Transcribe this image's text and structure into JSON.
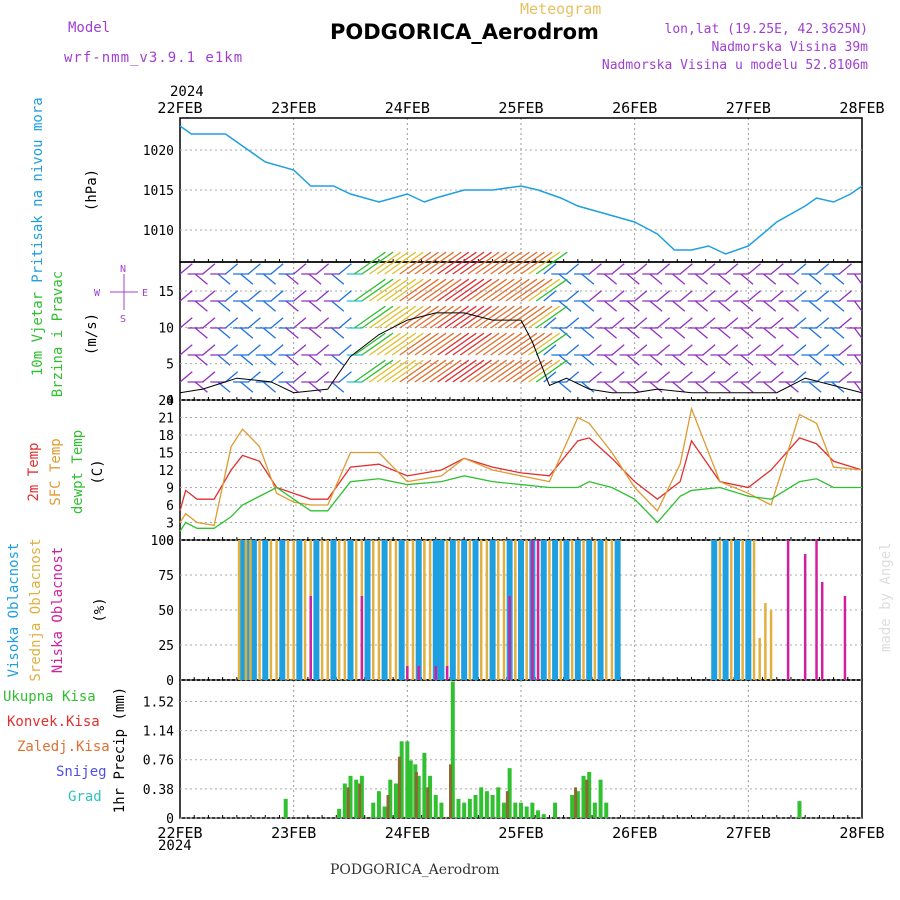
{
  "header": {
    "meteogram": "Meteogram",
    "title": "PODGORICA_Aerodrom",
    "model_label": "Model",
    "model_name": "wrf-nmm_v3.9.1 e1km",
    "lonlat": "lon,lat (19.25E, 42.3625N)",
    "altitude": "Nadmorska Visina 39m",
    "model_altitude": "Nadmorska Visina u modelu 52.8106m"
  },
  "year": "2024",
  "footer": "PODGORICA_Aerodrom",
  "credit": "made by Angel",
  "chart_data": [
    {
      "type": "line",
      "ylabel": [
        "Pritisak na nivou mora",
        "(hPa)"
      ],
      "x_ticks": [
        "22FEB",
        "23FEB",
        "24FEB",
        "25FEB",
        "26FEB",
        "27FEB",
        "28FEB"
      ],
      "yticks": [
        1010,
        1015,
        1020
      ],
      "ylim": [
        1006,
        1024
      ],
      "color": "#1e9fe0",
      "series": [
        {
          "name": "Pritisak na nivou mora",
          "x": [
            0,
            0.1,
            0.25,
            0.4,
            0.5,
            0.75,
            1.0,
            1.15,
            1.35,
            1.5,
            1.75,
            2.0,
            2.15,
            2.25,
            2.5,
            2.75,
            3.0,
            3.15,
            3.35,
            3.5,
            3.75,
            4.0,
            4.2,
            4.35,
            4.5,
            4.65,
            4.8,
            5.0,
            5.25,
            5.5,
            5.6,
            5.75,
            5.9,
            6.0
          ],
          "y": [
            1023,
            1022,
            1022,
            1022,
            1021,
            1018.5,
            1017.5,
            1015.5,
            1015.5,
            1014.5,
            1013.5,
            1014.5,
            1013.5,
            1014,
            1015,
            1015,
            1015.5,
            1015,
            1014,
            1013,
            1012,
            1011,
            1009.5,
            1007.5,
            1007.5,
            1008,
            1007,
            1008,
            1011,
            1013,
            1014,
            1013.5,
            1014.5,
            1015.5
          ]
        }
      ]
    },
    {
      "type": "line",
      "ylabel": [
        "10m Vjetar",
        "Brzina i Pravac",
        "(m/s)"
      ],
      "compass": [
        "N",
        "E",
        "S",
        "W"
      ],
      "yticks": [
        0,
        5,
        10,
        15
      ],
      "ylim": [
        0,
        19
      ],
      "series": [
        {
          "name": "10m Vjetar",
          "x": [
            0,
            0.2,
            0.4,
            0.5,
            0.8,
            1.0,
            1.3,
            1.5,
            1.75,
            2.0,
            2.25,
            2.5,
            2.75,
            3.0,
            3.1,
            3.25,
            3.4,
            3.6,
            3.8,
            4.0,
            4.2,
            4.5,
            4.75,
            5.0,
            5.25,
            5.5,
            5.75,
            6.0
          ],
          "y": [
            1,
            1.5,
            2.5,
            3,
            2.5,
            1,
            1.5,
            6,
            9,
            11,
            12,
            12,
            11,
            11,
            8,
            2,
            3,
            1.5,
            1,
            1,
            1.5,
            1,
            1,
            1,
            1,
            3,
            2,
            1
          ]
        }
      ]
    },
    {
      "type": "line",
      "ylabel": [
        "2m Temp",
        "SFC Temp",
        "dewpt Temp",
        "(C)"
      ],
      "yticks": [
        0,
        3,
        6,
        9,
        12,
        15,
        18,
        21,
        24
      ],
      "ylim": [
        0,
        24
      ],
      "series": [
        {
          "name": "2m Temp",
          "color": "#e03030",
          "x": [
            0,
            0.05,
            0.15,
            0.3,
            0.45,
            0.55,
            0.7,
            0.85,
            1.0,
            1.15,
            1.3,
            1.5,
            1.75,
            2.0,
            2.3,
            2.5,
            2.75,
            3.0,
            3.25,
            3.5,
            3.6,
            3.8,
            4.0,
            4.2,
            4.4,
            4.5,
            4.75,
            5.0,
            5.2,
            5.45,
            5.6,
            5.75,
            6.0
          ],
          "y": [
            5,
            8.5,
            7,
            7,
            12,
            14.5,
            13.5,
            9,
            8,
            7,
            7,
            12.5,
            13,
            11,
            12,
            14,
            12.5,
            11.5,
            11,
            17,
            17.5,
            14,
            10,
            7,
            10,
            17,
            10,
            9,
            12,
            17.5,
            16.5,
            13.5,
            12
          ]
        },
        {
          "name": "SFC Temp",
          "color": "#e09a30",
          "x": [
            0,
            0.05,
            0.15,
            0.3,
            0.45,
            0.55,
            0.7,
            0.85,
            1.0,
            1.15,
            1.3,
            1.5,
            1.75,
            2.0,
            2.3,
            2.5,
            2.75,
            3.0,
            3.25,
            3.5,
            3.6,
            3.8,
            4.0,
            4.2,
            4.4,
            4.5,
            4.75,
            5.0,
            5.2,
            5.45,
            5.6,
            5.75,
            6.0
          ],
          "y": [
            3,
            4.5,
            3,
            2.5,
            16,
            19,
            16,
            8,
            6.5,
            6,
            6,
            15,
            15,
            10,
            11,
            14,
            12,
            11,
            10,
            21,
            20,
            15,
            9,
            5,
            13,
            22.5,
            10,
            8,
            6,
            21.5,
            20,
            12.5,
            12
          ]
        },
        {
          "name": "dewpt Temp",
          "color": "#30c030",
          "x": [
            0,
            0.05,
            0.15,
            0.3,
            0.45,
            0.55,
            0.7,
            0.85,
            1.0,
            1.15,
            1.3,
            1.5,
            1.75,
            2.0,
            2.3,
            2.5,
            2.75,
            3.0,
            3.25,
            3.5,
            3.6,
            3.8,
            4.0,
            4.2,
            4.4,
            4.5,
            4.75,
            5.0,
            5.2,
            5.45,
            5.6,
            5.75,
            6.0
          ],
          "y": [
            1.5,
            3,
            2,
            2,
            4,
            6,
            7.5,
            9,
            7,
            5,
            5,
            10,
            10.5,
            9.5,
            10,
            11,
            10,
            9.5,
            9,
            9,
            10,
            9,
            7,
            3,
            7.5,
            8.5,
            9,
            7.5,
            7,
            10,
            10.5,
            9,
            9
          ]
        }
      ]
    },
    {
      "type": "bar",
      "ylabel": [
        "Visoka Oblacnost",
        "Srednja Oblacnost",
        "Niska Oblacnost",
        "(%)"
      ],
      "yticks": [
        0,
        25,
        50,
        75,
        100
      ],
      "ylim": [
        0,
        100
      ],
      "series": [
        {
          "name": "Visoka Oblacnost",
          "color": "#1e9fe0",
          "x": [
            0.55,
            0.6,
            0.65,
            0.75,
            0.9,
            1.05,
            1.2,
            1.35,
            1.5,
            1.65,
            1.8,
            1.95,
            2.1,
            2.25,
            2.3,
            2.4,
            2.5,
            2.6,
            2.75,
            2.9,
            3.0,
            3.1,
            3.2,
            3.3,
            3.4,
            3.5,
            3.6,
            3.7,
            3.85,
            4.7,
            4.8,
            4.9,
            5.0
          ],
          "values": [
            100,
            100,
            100,
            100,
            100,
            100,
            100,
            100,
            100,
            100,
            100,
            100,
            100,
            100,
            100,
            100,
            100,
            100,
            100,
            100,
            100,
            100,
            100,
            100,
            100,
            100,
            100,
            100,
            100,
            100,
            100,
            100,
            100
          ]
        },
        {
          "name": "Srednja Oblacnost",
          "color": "#e0b040",
          "x": [
            0.52,
            0.58,
            0.62,
            0.7,
            0.8,
            0.85,
            0.95,
            1.0,
            1.1,
            1.15,
            1.25,
            1.3,
            1.4,
            1.45,
            1.55,
            1.6,
            1.7,
            1.75,
            1.85,
            1.9,
            2.0,
            2.05,
            2.15,
            2.2,
            2.35,
            2.45,
            2.55,
            2.65,
            2.7,
            2.8,
            2.85,
            2.95,
            3.05,
            3.15,
            3.25,
            3.35,
            3.45,
            3.55,
            3.65,
            3.75,
            3.8,
            4.75,
            4.85,
            4.95,
            5.05,
            5.1,
            5.15,
            5.2
          ],
          "values": [
            100,
            100,
            100,
            100,
            100,
            100,
            100,
            100,
            100,
            100,
            100,
            100,
            100,
            100,
            100,
            100,
            100,
            100,
            100,
            100,
            100,
            100,
            100,
            100,
            100,
            100,
            100,
            100,
            100,
            100,
            100,
            100,
            100,
            100,
            100,
            100,
            100,
            100,
            100,
            100,
            100,
            100,
            100,
            100,
            100,
            30,
            55,
            50
          ]
        },
        {
          "name": "Niska Oblacnost",
          "color": "#d020a0",
          "x": [
            1.15,
            1.6,
            2.0,
            2.1,
            2.25,
            2.35,
            2.9,
            3.1,
            3.15,
            5.35,
            5.5,
            5.6,
            5.65,
            5.85
          ],
          "values": [
            60,
            60,
            10,
            10,
            10,
            10,
            60,
            100,
            100,
            100,
            90,
            100,
            70,
            60
          ]
        }
      ]
    },
    {
      "type": "bar",
      "ylabel": [
        "1hr Precip (mm)"
      ],
      "legend": [
        "Ukupna Kisa",
        "Konvek.Kisa",
        "Zaledj.Kisa",
        "Snijeg",
        "Grad"
      ],
      "yticks": [
        "0",
        "0.38",
        "0.76",
        "1.14",
        "1.52"
      ],
      "ylim": [
        0,
        1.8
      ],
      "series": [
        {
          "name": "Ukupna Kisa",
          "color": "#30c030",
          "x": [
            0.93,
            1.4,
            1.45,
            1.5,
            1.55,
            1.6,
            1.7,
            1.75,
            1.8,
            1.85,
            1.9,
            1.95,
            2.0,
            2.03,
            2.07,
            2.1,
            2.15,
            2.2,
            2.25,
            2.3,
            2.4,
            2.45,
            2.5,
            2.55,
            2.6,
            2.65,
            2.7,
            2.75,
            2.8,
            2.85,
            2.9,
            2.95,
            3.0,
            3.05,
            3.1,
            3.15,
            3.2,
            3.3,
            3.45,
            3.5,
            3.55,
            3.6,
            3.65,
            3.7,
            3.75,
            5.45
          ],
          "values": [
            0.25,
            0.12,
            0.45,
            0.55,
            0.5,
            0.55,
            0.2,
            0.35,
            0.15,
            0.5,
            0.45,
            1.0,
            1.0,
            0.75,
            0.7,
            0.55,
            0.85,
            0.55,
            0.3,
            0.2,
            1.78,
            0.25,
            0.2,
            0.25,
            0.3,
            0.4,
            0.35,
            0.3,
            0.4,
            0.2,
            0.65,
            0.2,
            0.2,
            0.15,
            0.2,
            0.1,
            0.05,
            0.2,
            0.3,
            0.35,
            0.55,
            0.6,
            0.2,
            0.5,
            0.2,
            0.22
          ]
        },
        {
          "name": "Konvek.Kisa",
          "color": "#8a6a30",
          "x": [
            1.48,
            1.58,
            1.83,
            1.93,
            2.08,
            2.18,
            2.38,
            2.88,
            3.48,
            3.58
          ],
          "values": [
            0.4,
            0.45,
            0.3,
            0.8,
            0.6,
            0.4,
            0.7,
            0.35,
            0.4,
            0.5
          ]
        }
      ]
    }
  ]
}
